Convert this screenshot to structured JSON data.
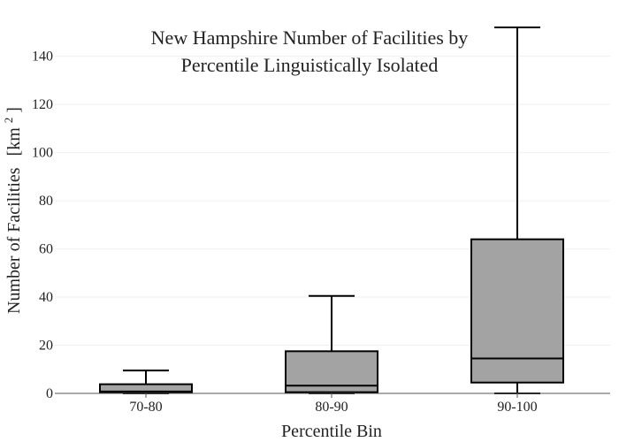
{
  "chart_data": {
    "type": "box",
    "title_lines": [
      "New Hampshire Number of Facilities by",
      "Percentile Linguistically Isolated"
    ],
    "xlabel": "Percentile Bin",
    "ylabel": "Number of Facilities",
    "ylabel_unit": "[km",
    "ylabel_unit_exp": "2",
    "ylabel_unit_close": "]",
    "ylim": [
      0,
      152
    ],
    "yticks": [
      0,
      20,
      40,
      60,
      80,
      100,
      120,
      140
    ],
    "categories": [
      "70-80",
      "80-90",
      "90-100"
    ],
    "boxes": [
      {
        "category": "70-80",
        "min": 0,
        "q1": 0.3,
        "median": 0.8,
        "q3": 3.8,
        "max": 9.5
      },
      {
        "category": "80-90",
        "min": 0,
        "q1": 0.5,
        "median": 3.2,
        "q3": 17.5,
        "max": 40.5
      },
      {
        "category": "90-100",
        "min": 0,
        "q1": 4.5,
        "median": 14.5,
        "q3": 64,
        "max": 152
      }
    ],
    "box_fill": "#a3a3a3",
    "box_stroke": "#000000",
    "grid": true,
    "grid_color": "#efefef",
    "axis_color": "#555555"
  }
}
